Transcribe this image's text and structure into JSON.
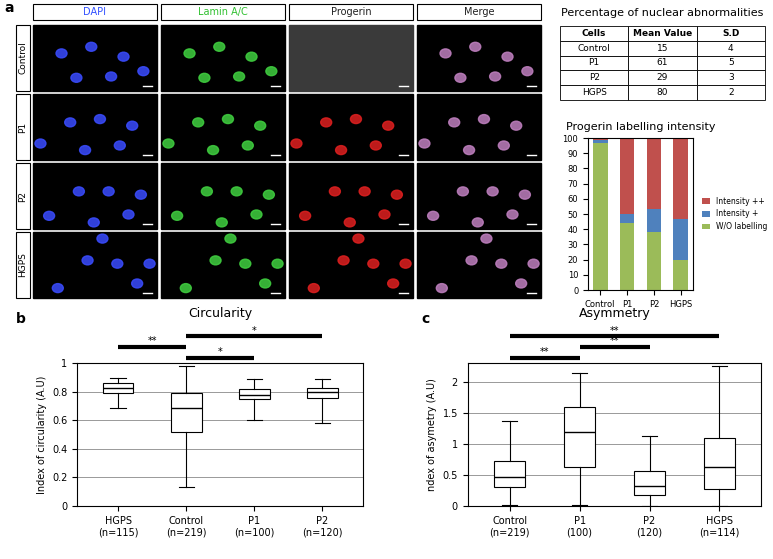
{
  "panel_labels": [
    "a",
    "b",
    "c"
  ],
  "image_panel": {
    "columns": [
      "DAPI",
      "Lamin A/C",
      "Progerin",
      "Merge"
    ],
    "rows": [
      "Control",
      "P1",
      "P2",
      "HGPS"
    ]
  },
  "table": {
    "title": "Percentage of nuclear abnormalities",
    "header": [
      "Cells",
      "Mean Value",
      "S.D"
    ],
    "rows": [
      [
        "Control",
        "15",
        "4"
      ],
      [
        "P1",
        "61",
        "5"
      ],
      [
        "P2",
        "29",
        "3"
      ],
      [
        "HGPS",
        "80",
        "2"
      ]
    ]
  },
  "chart_data": [
    {
      "type": "bar",
      "stacked": true,
      "title": "Progerin labelling intensity",
      "categories": [
        "Control",
        "P1",
        "P2",
        "HGPS"
      ],
      "series": [
        {
          "name": "W/O labelling",
          "color": "#9bbb59",
          "values": [
            97,
            44,
            38,
            20
          ]
        },
        {
          "name": "Intensity +",
          "color": "#4f81bd",
          "values": [
            2,
            6,
            15,
            27
          ]
        },
        {
          "name": "Intensity ++",
          "color": "#c0504d",
          "values": [
            1,
            50,
            47,
            53
          ]
        }
      ],
      "ylim": [
        0,
        100
      ],
      "yticks": [
        0,
        10,
        20,
        30,
        40,
        50,
        60,
        70,
        80,
        90,
        100
      ],
      "grid": false,
      "legend": "right"
    },
    {
      "type": "box",
      "title": "Circularity",
      "ylabel": "Index of circularity (A.U)",
      "categories": [
        "HGPS\n(n=115)",
        "Control\n(n=219)",
        "P1\n(n=100)",
        "P2\n(n=120)"
      ],
      "boxes": [
        {
          "whislo": 0.69,
          "q1": 0.79,
          "med": 0.83,
          "q3": 0.86,
          "whishi": 0.9
        },
        {
          "whislo": 0.13,
          "q1": 0.52,
          "med": 0.69,
          "q3": 0.79,
          "whishi": 0.98
        },
        {
          "whislo": 0.6,
          "q1": 0.75,
          "med": 0.78,
          "q3": 0.82,
          "whishi": 0.89
        },
        {
          "whislo": 0.58,
          "q1": 0.76,
          "med": 0.8,
          "q3": 0.83,
          "whishi": 0.89
        }
      ],
      "significance": [
        {
          "pair": [
            1,
            2
          ],
          "label": "*"
        },
        {
          "pair": [
            0,
            1
          ],
          "label": "**"
        },
        {
          "pair": [
            1,
            3
          ],
          "label": "*"
        }
      ],
      "ylim": [
        0,
        1
      ],
      "yticks": [
        0,
        0.2,
        0.4,
        0.6,
        0.8,
        1
      ],
      "grid": true
    },
    {
      "type": "box",
      "title": "Asymmetry",
      "ylabel": "ndex of asymetry (A.U)",
      "categories": [
        "Control\n(n=219)",
        "P1\n(100)",
        "P2\n(120)",
        "HGPS\n(n=114)"
      ],
      "boxes": [
        {
          "whislo": 0.02,
          "q1": 0.3,
          "med": 0.47,
          "q3": 0.72,
          "whishi": 1.37
        },
        {
          "whislo": 0.02,
          "q1": 0.62,
          "med": 1.2,
          "q3": 1.6,
          "whishi": 2.15
        },
        {
          "whislo": 0.0,
          "q1": 0.17,
          "med": 0.32,
          "q3": 0.57,
          "whishi": 1.13
        },
        {
          "whislo": 0.0,
          "q1": 0.27,
          "med": 0.62,
          "q3": 1.1,
          "whishi": 2.25
        }
      ],
      "significance": [
        {
          "pair": [
            0,
            1
          ],
          "label": "**"
        },
        {
          "pair": [
            1,
            2
          ],
          "label": "**"
        },
        {
          "pair": [
            0,
            3
          ],
          "label": "**"
        }
      ],
      "ylim": [
        0,
        2.3
      ],
      "yticks": [
        0,
        0.5,
        1,
        1.5,
        2
      ],
      "grid": true
    }
  ]
}
